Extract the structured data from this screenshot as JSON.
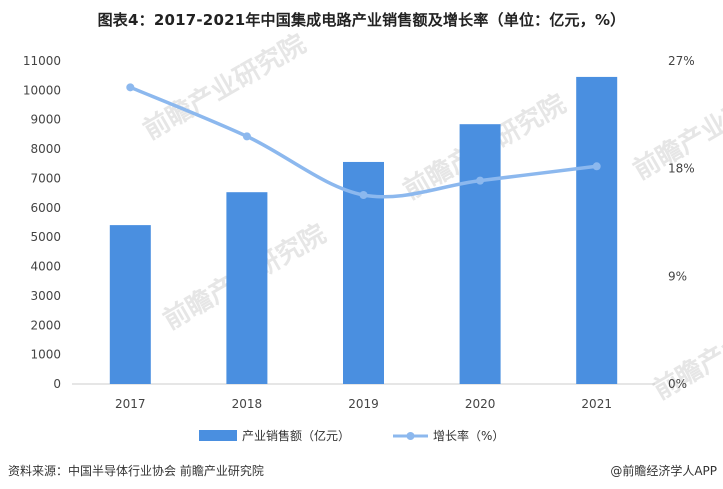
{
  "title": "图表4：2017-2021年中国集成电路产业销售额及增长率（单位：亿元，%）",
  "source": "资料来源：中国半导体行业协会 前瞻产业研究院",
  "brand": "@前瞻经济学人APP",
  "watermark": "前瞻产业研究院",
  "colors": {
    "bar": "#4a8fe0",
    "line": "#8cb8ee"
  },
  "chart_data": {
    "type": "bar",
    "categories": [
      "2017",
      "2018",
      "2019",
      "2020",
      "2021"
    ],
    "series": [
      {
        "name": "产业销售额（亿元）",
        "type": "bar",
        "axis": "left",
        "values": [
          5411,
          6532,
          7562,
          8848,
          10458
        ]
      },
      {
        "name": "增长率（%）",
        "type": "line",
        "axis": "right",
        "values": [
          24.8,
          20.7,
          15.8,
          17.0,
          18.2
        ]
      }
    ],
    "y_left": {
      "min": 0,
      "max": 11000,
      "ticks": [
        "0",
        "1000",
        "2000",
        "3000",
        "4000",
        "5000",
        "6000",
        "7000",
        "8000",
        "9000",
        "10000",
        "11000"
      ]
    },
    "y_right": {
      "min": 0,
      "max": 27,
      "ticks": [
        "0%",
        "9%",
        "18%",
        "27%"
      ]
    },
    "grid": false,
    "legend_position": "bottom"
  }
}
